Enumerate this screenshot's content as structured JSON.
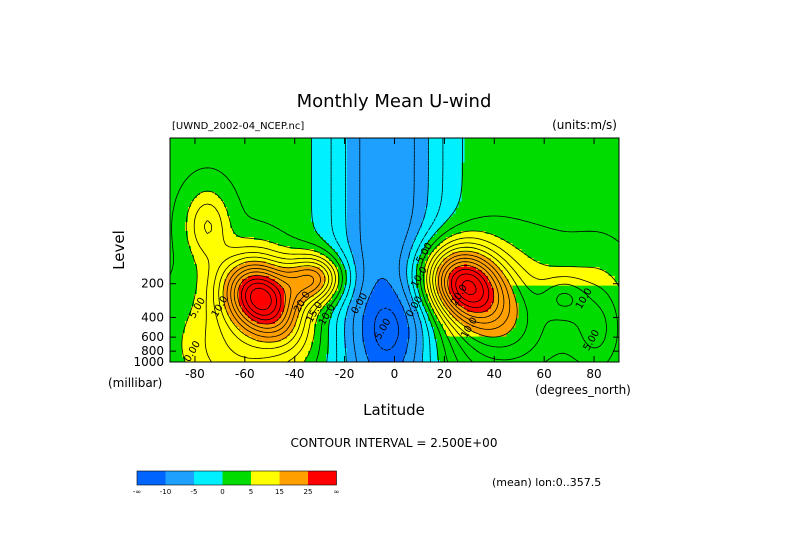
{
  "chart_data": {
    "type": "heatmap",
    "title": "Monthly Mean U-wind",
    "dataset_label": "[UWND_2002-04_NCEP.nc]",
    "units_label": "(units:m/s)",
    "xlabel": "Latitude",
    "ylabel": "Level",
    "x_unit": "(degrees_north)",
    "y_unit": "(millibar)",
    "xlim": [
      -90,
      90
    ],
    "ylim": [
      1000,
      10
    ],
    "x_ticks": [
      -80,
      -60,
      -40,
      -20,
      0,
      20,
      40,
      60,
      80
    ],
    "y_ticks": [
      200,
      400,
      600,
      800,
      1000
    ],
    "contour_interval_text": "CONTOUR INTERVAL = 2.500E+00",
    "mean_note": "(mean) lon:0..357.5",
    "contour_labels": [
      {
        "text": "5.00",
        "lat": -78,
        "level": 340
      },
      {
        "text": "10.0",
        "lat": -69,
        "level": 330
      },
      {
        "text": "20.0",
        "lat": -36,
        "level": 300
      },
      {
        "text": "15.0",
        "lat": -31,
        "level": 370
      },
      {
        "text": "10.0",
        "lat": -26,
        "level": 390
      },
      {
        "text": "0.00",
        "lat": -13,
        "level": 310
      },
      {
        "text": "-5.00",
        "lat": -4,
        "level": 540
      },
      {
        "text": "0.00",
        "lat": 9,
        "level": 330
      },
      {
        "text": "10.0",
        "lat": 11,
        "level": 180
      },
      {
        "text": "5.00",
        "lat": 13,
        "level": 110
      },
      {
        "text": "20.0",
        "lat": 27,
        "level": 260
      },
      {
        "text": "10.0",
        "lat": 31,
        "level": 510
      },
      {
        "text": "10.0",
        "lat": 77,
        "level": 280
      },
      {
        "text": "5.00",
        "lat": 80,
        "level": 660
      },
      {
        "text": "0.00",
        "lat": -80,
        "level": 830
      }
    ],
    "jets": [
      {
        "lat": -54,
        "level": 260,
        "peak": 30
      },
      {
        "lat": -32,
        "level": 180,
        "peak": 27
      },
      {
        "lat": 27,
        "level": 180,
        "peak": 30
      }
    ],
    "legend": {
      "colors": [
        "#0064ff",
        "#1ea0ff",
        "#00f0ff",
        "#00dc00",
        "#ffff00",
        "#ffa000",
        "#ff0000"
      ],
      "labels": [
        "-∞",
        "-10",
        "-5",
        "0",
        "5",
        "15",
        "25",
        "∞"
      ]
    }
  }
}
